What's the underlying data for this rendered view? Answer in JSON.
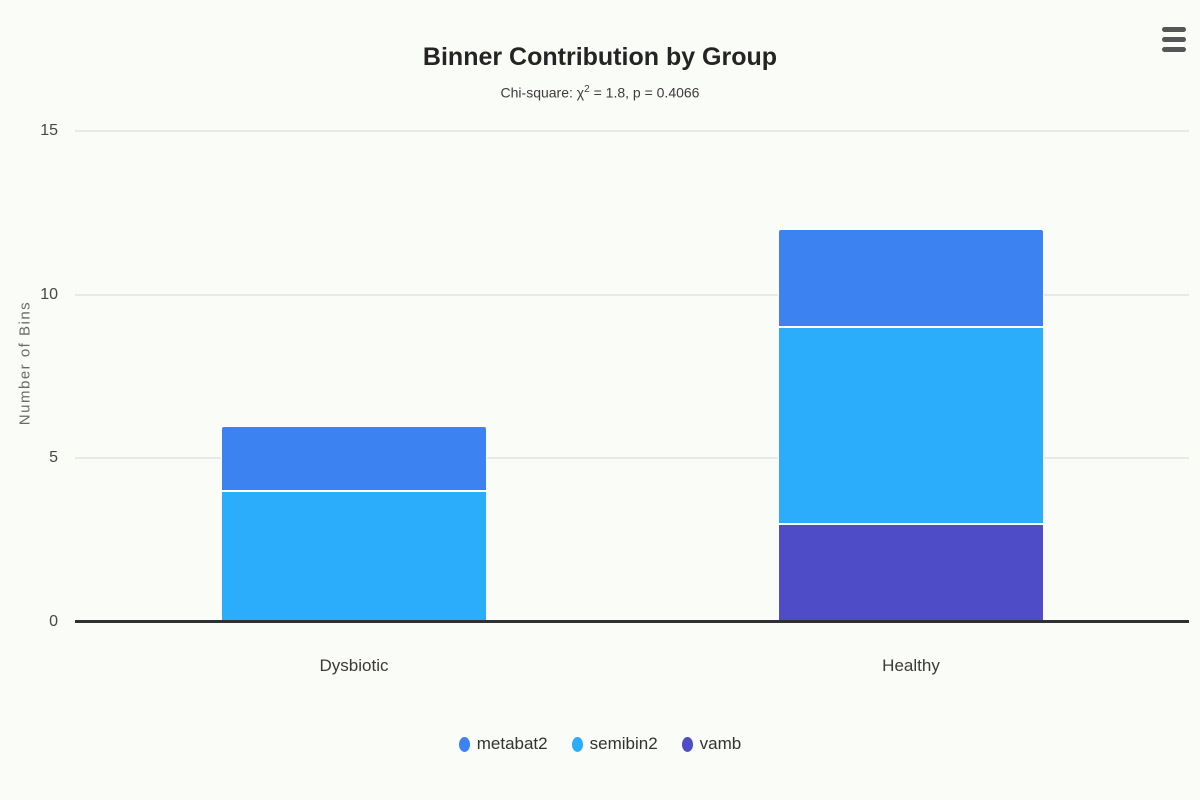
{
  "page": {
    "background": "#fafcf7"
  },
  "header": {
    "title": "Binner Contribution by Group",
    "subtitle": {
      "prefix": "Chi-square: χ",
      "sup": "2",
      "rest": " = 1.8, p = 0.4066"
    },
    "menu_icon": "hamburger-menu-icon"
  },
  "chart_data": {
    "type": "bar",
    "stacked": true,
    "title": "Binner Contribution by Group",
    "subtitle": "Chi-square: χ² = 1.8, p = 0.4066",
    "categories": [
      "Dysbiotic",
      "Healthy"
    ],
    "series": [
      {
        "name": "metabat2",
        "color": "#3c82f1",
        "values": [
          2,
          3
        ]
      },
      {
        "name": "semibin2",
        "color": "#2badfc",
        "values": [
          4,
          6
        ]
      },
      {
        "name": "vamb",
        "color": "#4e4dc7",
        "values": [
          0,
          3
        ]
      }
    ],
    "stack_totals": [
      6,
      12
    ],
    "xlabel": "",
    "ylabel": "Number of Bins",
    "yticks": [
      0,
      5,
      10,
      15
    ],
    "ylim": [
      0,
      15
    ],
    "grid": true,
    "grid_color": "#e9e9e9",
    "axis_line_color": "#303034",
    "legend_position": "bottom"
  }
}
